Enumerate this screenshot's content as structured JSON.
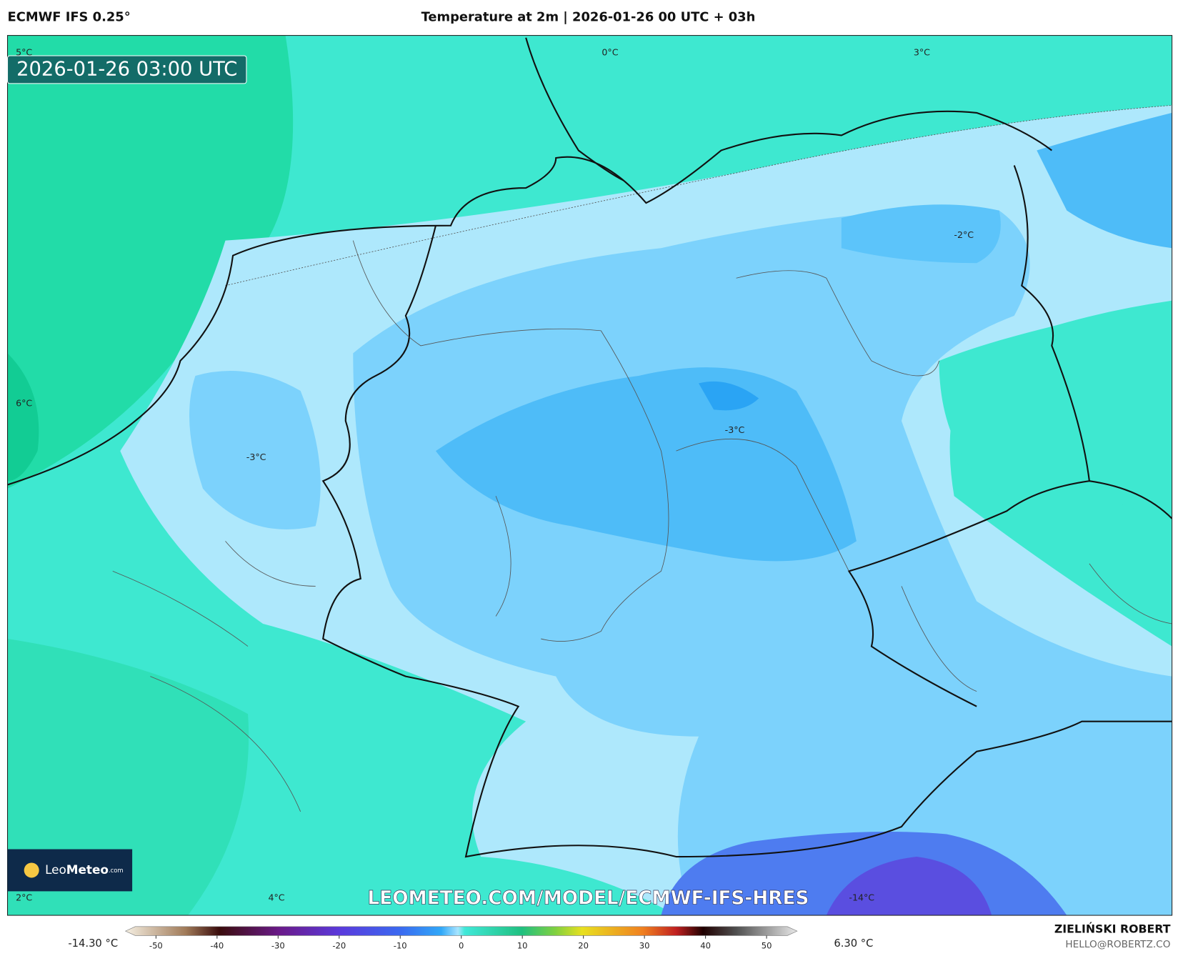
{
  "header": {
    "model": "ECMWF IFS 0.25°",
    "title": "Temperature at 2m | 2026-01-26 00 UTC + 03h"
  },
  "map": {
    "valid_time": "2026-01-26 03:00 UTC",
    "contour_labels": [
      "5°C",
      "0°C",
      "3°C",
      "-2°C",
      "6°C",
      "-3°C",
      "-3°C",
      "2°C",
      "4°C",
      "-14°C"
    ],
    "logo": [
      "Leo",
      "Meteo",
      ".com"
    ],
    "watermark": "LEOMETEO.COM/MODEL/ECMWF-IFS-HRES"
  },
  "colorbar": {
    "min_label": "-14.30 °C",
    "max_label": "6.30 °C",
    "range": [
      -55,
      55
    ],
    "ticks": [
      -50,
      -40,
      -30,
      -20,
      -10,
      0,
      10,
      20,
      30,
      40,
      50
    ]
  },
  "footer": {
    "author": "ZIELIŃSKI ROBERT",
    "email": "HELLO@ROBERTZ.CO"
  }
}
